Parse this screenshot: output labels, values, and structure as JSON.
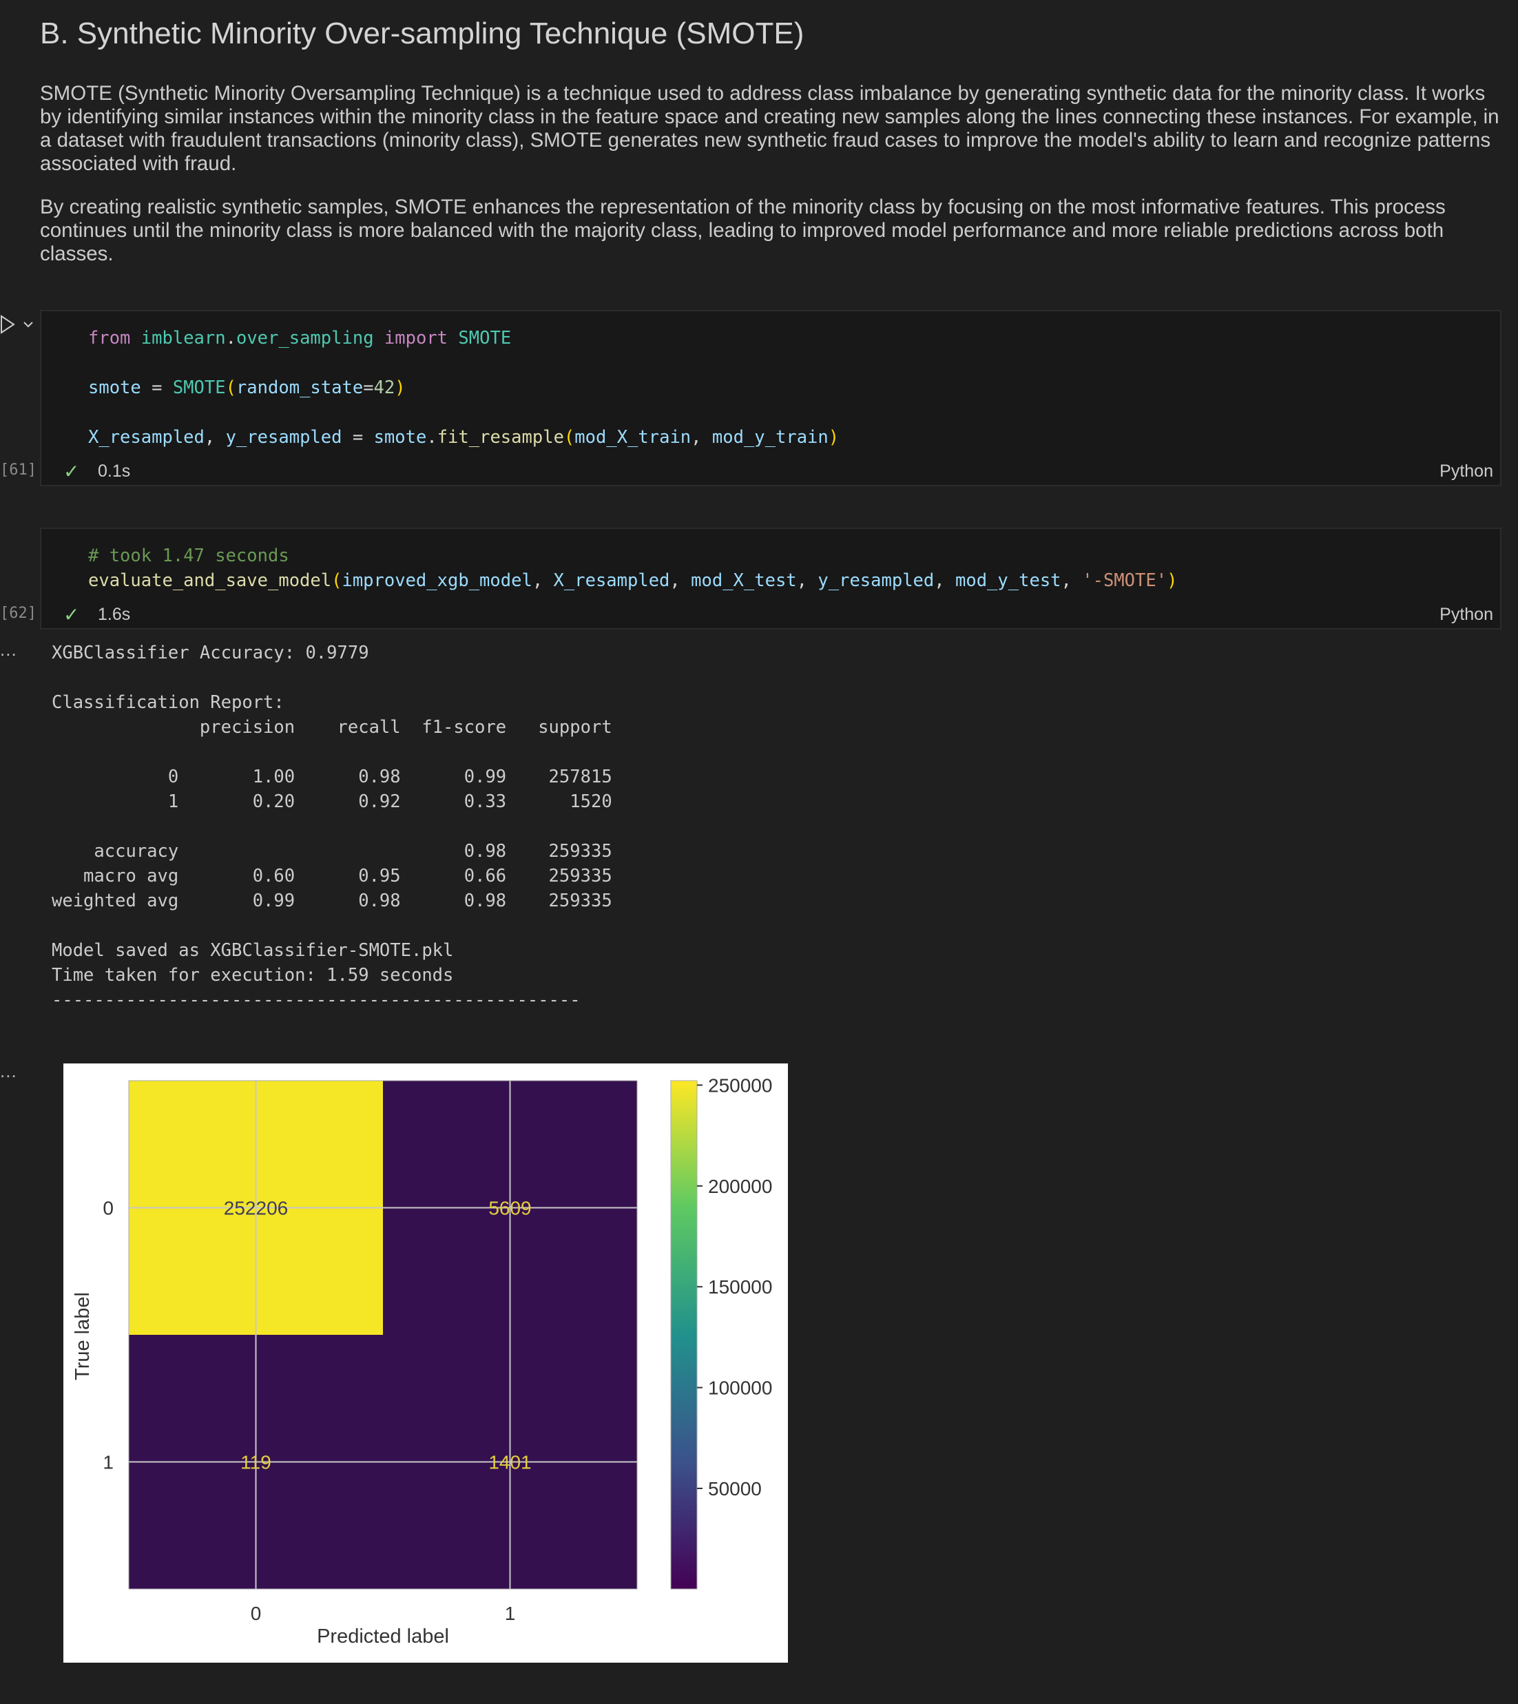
{
  "markdown": {
    "title": "B. Synthetic Minority Over-sampling Technique (SMOTE)",
    "paragraph1": "SMOTE (Synthetic Minority Oversampling Technique) is a technique used to address class imbalance by generating synthetic data for the minority class. It works by identifying similar instances within the minority class in the feature space and creating new samples along the lines connecting these instances. For example, in a dataset with fraudulent transactions (minority class), SMOTE generates new synthetic fraud cases to improve the model's ability to learn and recognize patterns associated with fraud.",
    "paragraph2": "By creating realistic synthetic samples, SMOTE enhances the representation of the minority class by focusing on the most informative features. This process continues until the minority class is more balanced with the majority class, leading to improved model performance and more reliable predictions across both classes."
  },
  "cell1": {
    "exec_count": "[61]",
    "status_time": "0.1s",
    "language": "Python",
    "tokens": {
      "from": "from",
      "module": "imblearn",
      "dot1": ".",
      "submodule": "over_sampling",
      "import": "import",
      "cls": "SMOTE",
      "smote_var": "smote",
      "eq1": " = ",
      "cls2": "SMOTE",
      "lp1": "(",
      "param": "random_state",
      "eq2": "=",
      "num": "42",
      "rp1": ")",
      "xres": "X_resampled",
      "comma1": ", ",
      "yres": "y_resampled",
      "eq3": " = ",
      "smote2": "smote",
      "dot2": ".",
      "method": "fit_resample",
      "lp2": "(",
      "arg1": "mod_X_train",
      "comma2": ", ",
      "arg2": "mod_y_train",
      "rp2": ")"
    }
  },
  "cell2": {
    "exec_count": "[62]",
    "status_time": "1.6s",
    "language": "Python",
    "tokens": {
      "comment": "# took 1.47 seconds",
      "fn": "evaluate_and_save_model",
      "lp": "(",
      "a1": "improved_xgb_model",
      "c1": ", ",
      "a2": "X_resampled",
      "c2": ", ",
      "a3": "mod_X_test",
      "c3": ", ",
      "a4": "y_resampled",
      "c4": ", ",
      "a5": "mod_y_test",
      "c5": ", ",
      "a6": "'-SMOTE'",
      "rp": ")"
    },
    "output_text": "XGBClassifier Accuracy: 0.9779\n\nClassification Report:\n              precision    recall  f1-score   support\n\n           0       1.00      0.98      0.99    257815\n           1       0.20      0.92      0.33      1520\n\n    accuracy                           0.98    259335\n   macro avg       0.60      0.95      0.66    259335\nweighted avg       0.99      0.98      0.98    259335\n\nModel saved as XGBClassifier-SMOTE.pkl\nTime taken for execution: 1.59 seconds\n--------------------------------------------------"
  },
  "output_menu": "...",
  "chart_data": {
    "type": "heatmap",
    "title": "",
    "xlabel": "Predicted label",
    "ylabel": "True label",
    "x_ticks": [
      "0",
      "1"
    ],
    "y_ticks": [
      "0",
      "1"
    ],
    "matrix": [
      [
        252206,
        5609
      ],
      [
        119,
        1401
      ]
    ],
    "colormap": "viridis",
    "colors": {
      "high": "#f5e626",
      "low": "#35104f",
      "text_low": "#e3cf3f",
      "text_high": "#3f3d5a"
    },
    "colorbar_ticks": [
      "250000",
      "200000",
      "150000",
      "100000",
      "50000"
    ],
    "colorbar_range": [
      119,
      252206
    ],
    "grid": true
  }
}
